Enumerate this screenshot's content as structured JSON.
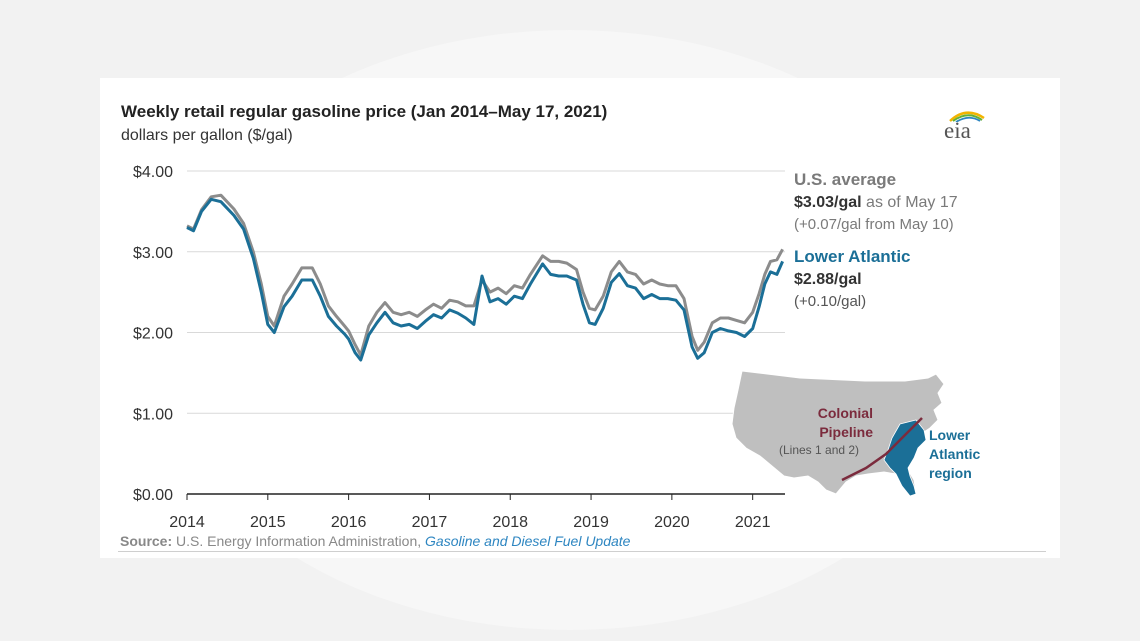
{
  "chart_data": {
    "type": "line",
    "title": "Weekly retail regular gasoline price (Jan 2014–May 17, 2021)",
    "subtitle": "dollars per gallon ($/gal)",
    "ylim": [
      0,
      4
    ],
    "xlim": [
      2014,
      2021.4
    ],
    "y_ticks": [
      "$0.00",
      "$1.00",
      "$2.00",
      "$3.00",
      "$4.00"
    ],
    "y_tick_values": [
      0,
      1,
      2,
      3,
      4
    ],
    "x_ticks": [
      "2014",
      "2015",
      "2016",
      "2017",
      "2018",
      "2019",
      "2020",
      "2021"
    ],
    "x_tick_values": [
      2014,
      2015,
      2016,
      2017,
      2018,
      2019,
      2020,
      2021
    ],
    "grid": "horizontal",
    "series": [
      {
        "name": "U.S. average",
        "color": "#8c8c8c",
        "points": [
          [
            2014.0,
            3.32
          ],
          [
            2014.08,
            3.28
          ],
          [
            2014.18,
            3.52
          ],
          [
            2014.3,
            3.68
          ],
          [
            2014.42,
            3.7
          ],
          [
            2014.58,
            3.53
          ],
          [
            2014.7,
            3.35
          ],
          [
            2014.82,
            3.0
          ],
          [
            2014.92,
            2.6
          ],
          [
            2015.0,
            2.2
          ],
          [
            2015.08,
            2.08
          ],
          [
            2015.2,
            2.45
          ],
          [
            2015.3,
            2.6
          ],
          [
            2015.42,
            2.8
          ],
          [
            2015.55,
            2.8
          ],
          [
            2015.65,
            2.6
          ],
          [
            2015.75,
            2.33
          ],
          [
            2015.85,
            2.2
          ],
          [
            2015.95,
            2.08
          ],
          [
            2016.0,
            2.02
          ],
          [
            2016.08,
            1.85
          ],
          [
            2016.15,
            1.72
          ],
          [
            2016.25,
            2.08
          ],
          [
            2016.35,
            2.25
          ],
          [
            2016.45,
            2.37
          ],
          [
            2016.55,
            2.25
          ],
          [
            2016.65,
            2.22
          ],
          [
            2016.75,
            2.25
          ],
          [
            2016.85,
            2.2
          ],
          [
            2016.95,
            2.28
          ],
          [
            2017.05,
            2.35
          ],
          [
            2017.15,
            2.3
          ],
          [
            2017.25,
            2.4
          ],
          [
            2017.35,
            2.38
          ],
          [
            2017.45,
            2.33
          ],
          [
            2017.55,
            2.33
          ],
          [
            2017.65,
            2.65
          ],
          [
            2017.75,
            2.5
          ],
          [
            2017.85,
            2.55
          ],
          [
            2017.95,
            2.48
          ],
          [
            2018.05,
            2.58
          ],
          [
            2018.15,
            2.55
          ],
          [
            2018.25,
            2.72
          ],
          [
            2018.4,
            2.95
          ],
          [
            2018.5,
            2.88
          ],
          [
            2018.6,
            2.88
          ],
          [
            2018.7,
            2.86
          ],
          [
            2018.82,
            2.78
          ],
          [
            2018.9,
            2.5
          ],
          [
            2018.98,
            2.3
          ],
          [
            2019.05,
            2.28
          ],
          [
            2019.15,
            2.45
          ],
          [
            2019.25,
            2.75
          ],
          [
            2019.35,
            2.88
          ],
          [
            2019.45,
            2.75
          ],
          [
            2019.55,
            2.72
          ],
          [
            2019.65,
            2.6
          ],
          [
            2019.75,
            2.65
          ],
          [
            2019.85,
            2.6
          ],
          [
            2019.95,
            2.58
          ],
          [
            2020.05,
            2.58
          ],
          [
            2020.15,
            2.42
          ],
          [
            2020.25,
            1.95
          ],
          [
            2020.32,
            1.78
          ],
          [
            2020.4,
            1.88
          ],
          [
            2020.5,
            2.12
          ],
          [
            2020.6,
            2.18
          ],
          [
            2020.7,
            2.18
          ],
          [
            2020.8,
            2.15
          ],
          [
            2020.9,
            2.12
          ],
          [
            2021.0,
            2.25
          ],
          [
            2021.08,
            2.48
          ],
          [
            2021.15,
            2.72
          ],
          [
            2021.22,
            2.88
          ],
          [
            2021.3,
            2.9
          ],
          [
            2021.37,
            3.03
          ]
        ]
      },
      {
        "name": "Lower Atlantic",
        "color": "#1b6f97",
        "points": [
          [
            2014.0,
            3.3
          ],
          [
            2014.08,
            3.26
          ],
          [
            2014.18,
            3.5
          ],
          [
            2014.3,
            3.65
          ],
          [
            2014.42,
            3.62
          ],
          [
            2014.58,
            3.45
          ],
          [
            2014.7,
            3.28
          ],
          [
            2014.82,
            2.92
          ],
          [
            2014.92,
            2.5
          ],
          [
            2015.0,
            2.1
          ],
          [
            2015.08,
            2.0
          ],
          [
            2015.2,
            2.32
          ],
          [
            2015.3,
            2.45
          ],
          [
            2015.42,
            2.65
          ],
          [
            2015.55,
            2.65
          ],
          [
            2015.65,
            2.45
          ],
          [
            2015.75,
            2.2
          ],
          [
            2015.85,
            2.08
          ],
          [
            2015.95,
            1.98
          ],
          [
            2016.0,
            1.92
          ],
          [
            2016.08,
            1.75
          ],
          [
            2016.15,
            1.66
          ],
          [
            2016.25,
            1.97
          ],
          [
            2016.35,
            2.12
          ],
          [
            2016.45,
            2.25
          ],
          [
            2016.55,
            2.12
          ],
          [
            2016.65,
            2.08
          ],
          [
            2016.75,
            2.1
          ],
          [
            2016.85,
            2.05
          ],
          [
            2016.95,
            2.14
          ],
          [
            2017.05,
            2.22
          ],
          [
            2017.15,
            2.18
          ],
          [
            2017.25,
            2.28
          ],
          [
            2017.35,
            2.24
          ],
          [
            2017.45,
            2.18
          ],
          [
            2017.55,
            2.1
          ],
          [
            2017.65,
            2.7
          ],
          [
            2017.75,
            2.38
          ],
          [
            2017.85,
            2.42
          ],
          [
            2017.95,
            2.35
          ],
          [
            2018.05,
            2.45
          ],
          [
            2018.15,
            2.42
          ],
          [
            2018.25,
            2.6
          ],
          [
            2018.4,
            2.85
          ],
          [
            2018.5,
            2.72
          ],
          [
            2018.6,
            2.7
          ],
          [
            2018.7,
            2.7
          ],
          [
            2018.82,
            2.65
          ],
          [
            2018.9,
            2.35
          ],
          [
            2018.98,
            2.12
          ],
          [
            2019.05,
            2.1
          ],
          [
            2019.15,
            2.3
          ],
          [
            2019.25,
            2.62
          ],
          [
            2019.35,
            2.73
          ],
          [
            2019.45,
            2.58
          ],
          [
            2019.55,
            2.55
          ],
          [
            2019.65,
            2.42
          ],
          [
            2019.75,
            2.47
          ],
          [
            2019.85,
            2.42
          ],
          [
            2019.95,
            2.42
          ],
          [
            2020.05,
            2.4
          ],
          [
            2020.15,
            2.28
          ],
          [
            2020.25,
            1.82
          ],
          [
            2020.32,
            1.68
          ],
          [
            2020.4,
            1.75
          ],
          [
            2020.5,
            2.0
          ],
          [
            2020.6,
            2.05
          ],
          [
            2020.7,
            2.02
          ],
          [
            2020.8,
            2.0
          ],
          [
            2020.9,
            1.95
          ],
          [
            2021.0,
            2.05
          ],
          [
            2021.08,
            2.32
          ],
          [
            2021.15,
            2.6
          ],
          [
            2021.22,
            2.75
          ],
          [
            2021.3,
            2.72
          ],
          [
            2021.37,
            2.88
          ]
        ]
      }
    ]
  },
  "annotations": {
    "us_heading": "U.S. average",
    "us_value": "$3.03/gal",
    "us_asof": " as of May 17",
    "us_change": "(+0.07/gal from May 10)",
    "la_heading": "Lower Atlantic",
    "la_value": "$2.88/gal",
    "la_change": "(+0.10/gal)"
  },
  "map": {
    "pipeline_label_1": "Colonial",
    "pipeline_label_2": "Pipeline",
    "pipeline_sub": "(Lines 1 and 2)",
    "region_label_1": "Lower",
    "region_label_2": "Atlantic",
    "region_label_3": "region",
    "land_color": "#bfbfbf",
    "region_color": "#1b6f97",
    "pipeline_color": "#7b2b3d"
  },
  "source": {
    "label": "Source:",
    "text": " U.S. Energy Information Administration, ",
    "link": "Gasoline and Diesel Fuel Update"
  },
  "logo_text": "eia"
}
